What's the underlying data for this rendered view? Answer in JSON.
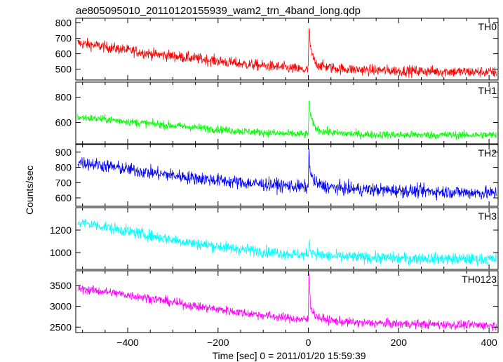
{
  "chart_data": {
    "type": "line",
    "title": "ae805095010_20110120155939_wam2_trn_4band_long.qdp",
    "xlabel": "Time [sec] 0 = 2011/01/20 15:59:39",
    "ylabel": "Counts/sec",
    "xlim": [
      -515,
      420
    ],
    "x_ticks": [
      -400,
      -200,
      0,
      200,
      400
    ],
    "x_tick_labels": [
      "−400",
      "−200",
      "0",
      "200",
      "400"
    ],
    "grid": false,
    "legend": "none",
    "panels": [
      {
        "name": "TH0",
        "color": "#ff0000",
        "ylim": [
          430,
          830
        ],
        "yticks": [
          500,
          600,
          700,
          800
        ],
        "trend_x": [
          -510,
          -450,
          -350,
          -250,
          -150,
          -50,
          -10,
          0,
          1,
          5,
          15,
          30,
          60,
          120,
          200,
          300,
          410
        ],
        "trend_y": [
          670,
          645,
          600,
          570,
          535,
          510,
          495,
          495,
          790,
          620,
          540,
          520,
          505,
          495,
          490,
          485,
          480
        ],
        "noise": 18
      },
      {
        "name": "TH1",
        "color": "#00ff00",
        "ylim": [
          430,
          920
        ],
        "yticks": [
          600,
          800
        ],
        "trend_x": [
          -510,
          -450,
          -350,
          -250,
          -150,
          -50,
          -10,
          0,
          1,
          5,
          15,
          30,
          60,
          120,
          200,
          300,
          410
        ],
        "trend_y": [
          640,
          625,
          590,
          560,
          530,
          510,
          505,
          505,
          790,
          640,
          560,
          530,
          515,
          505,
          500,
          500,
          500
        ],
        "noise": 16
      },
      {
        "name": "TH2",
        "color": "#0000ff",
        "ylim": [
          545,
          950
        ],
        "yticks": [
          600,
          700,
          800,
          900
        ],
        "trend_x": [
          -510,
          -450,
          -350,
          -250,
          -150,
          -50,
          -10,
          0,
          1,
          5,
          15,
          30,
          60,
          120,
          200,
          300,
          410
        ],
        "trend_y": [
          835,
          810,
          765,
          730,
          700,
          680,
          670,
          670,
          910,
          750,
          700,
          680,
          665,
          655,
          648,
          640,
          630
        ],
        "noise": 22
      },
      {
        "name": "TH3",
        "color": "#00ffff",
        "ylim": [
          850,
          1400
        ],
        "yticks": [
          1000,
          1200
        ],
        "trend_x": [
          -510,
          -450,
          -350,
          -250,
          -150,
          -50,
          -10,
          0,
          1,
          5,
          15,
          30,
          60,
          120,
          200,
          300,
          410
        ],
        "trend_y": [
          1270,
          1230,
          1150,
          1080,
          1030,
          990,
          980,
          980,
          1100,
          1020,
          990,
          975,
          965,
          958,
          950,
          945,
          940
        ],
        "noise": 26
      },
      {
        "name": "TH0123",
        "color": "#ff00ff",
        "ylim": [
          2370,
          3850
        ],
        "yticks": [
          2500,
          3000,
          3500
        ],
        "trend_x": [
          -510,
          -450,
          -350,
          -250,
          -150,
          -50,
          -10,
          0,
          1,
          5,
          15,
          30,
          60,
          120,
          200,
          300,
          410
        ],
        "trend_y": [
          3420,
          3350,
          3190,
          3000,
          2850,
          2720,
          2680,
          2680,
          3800,
          3000,
          2780,
          2700,
          2640,
          2600,
          2580,
          2560,
          2540
        ],
        "noise": 55
      }
    ]
  }
}
